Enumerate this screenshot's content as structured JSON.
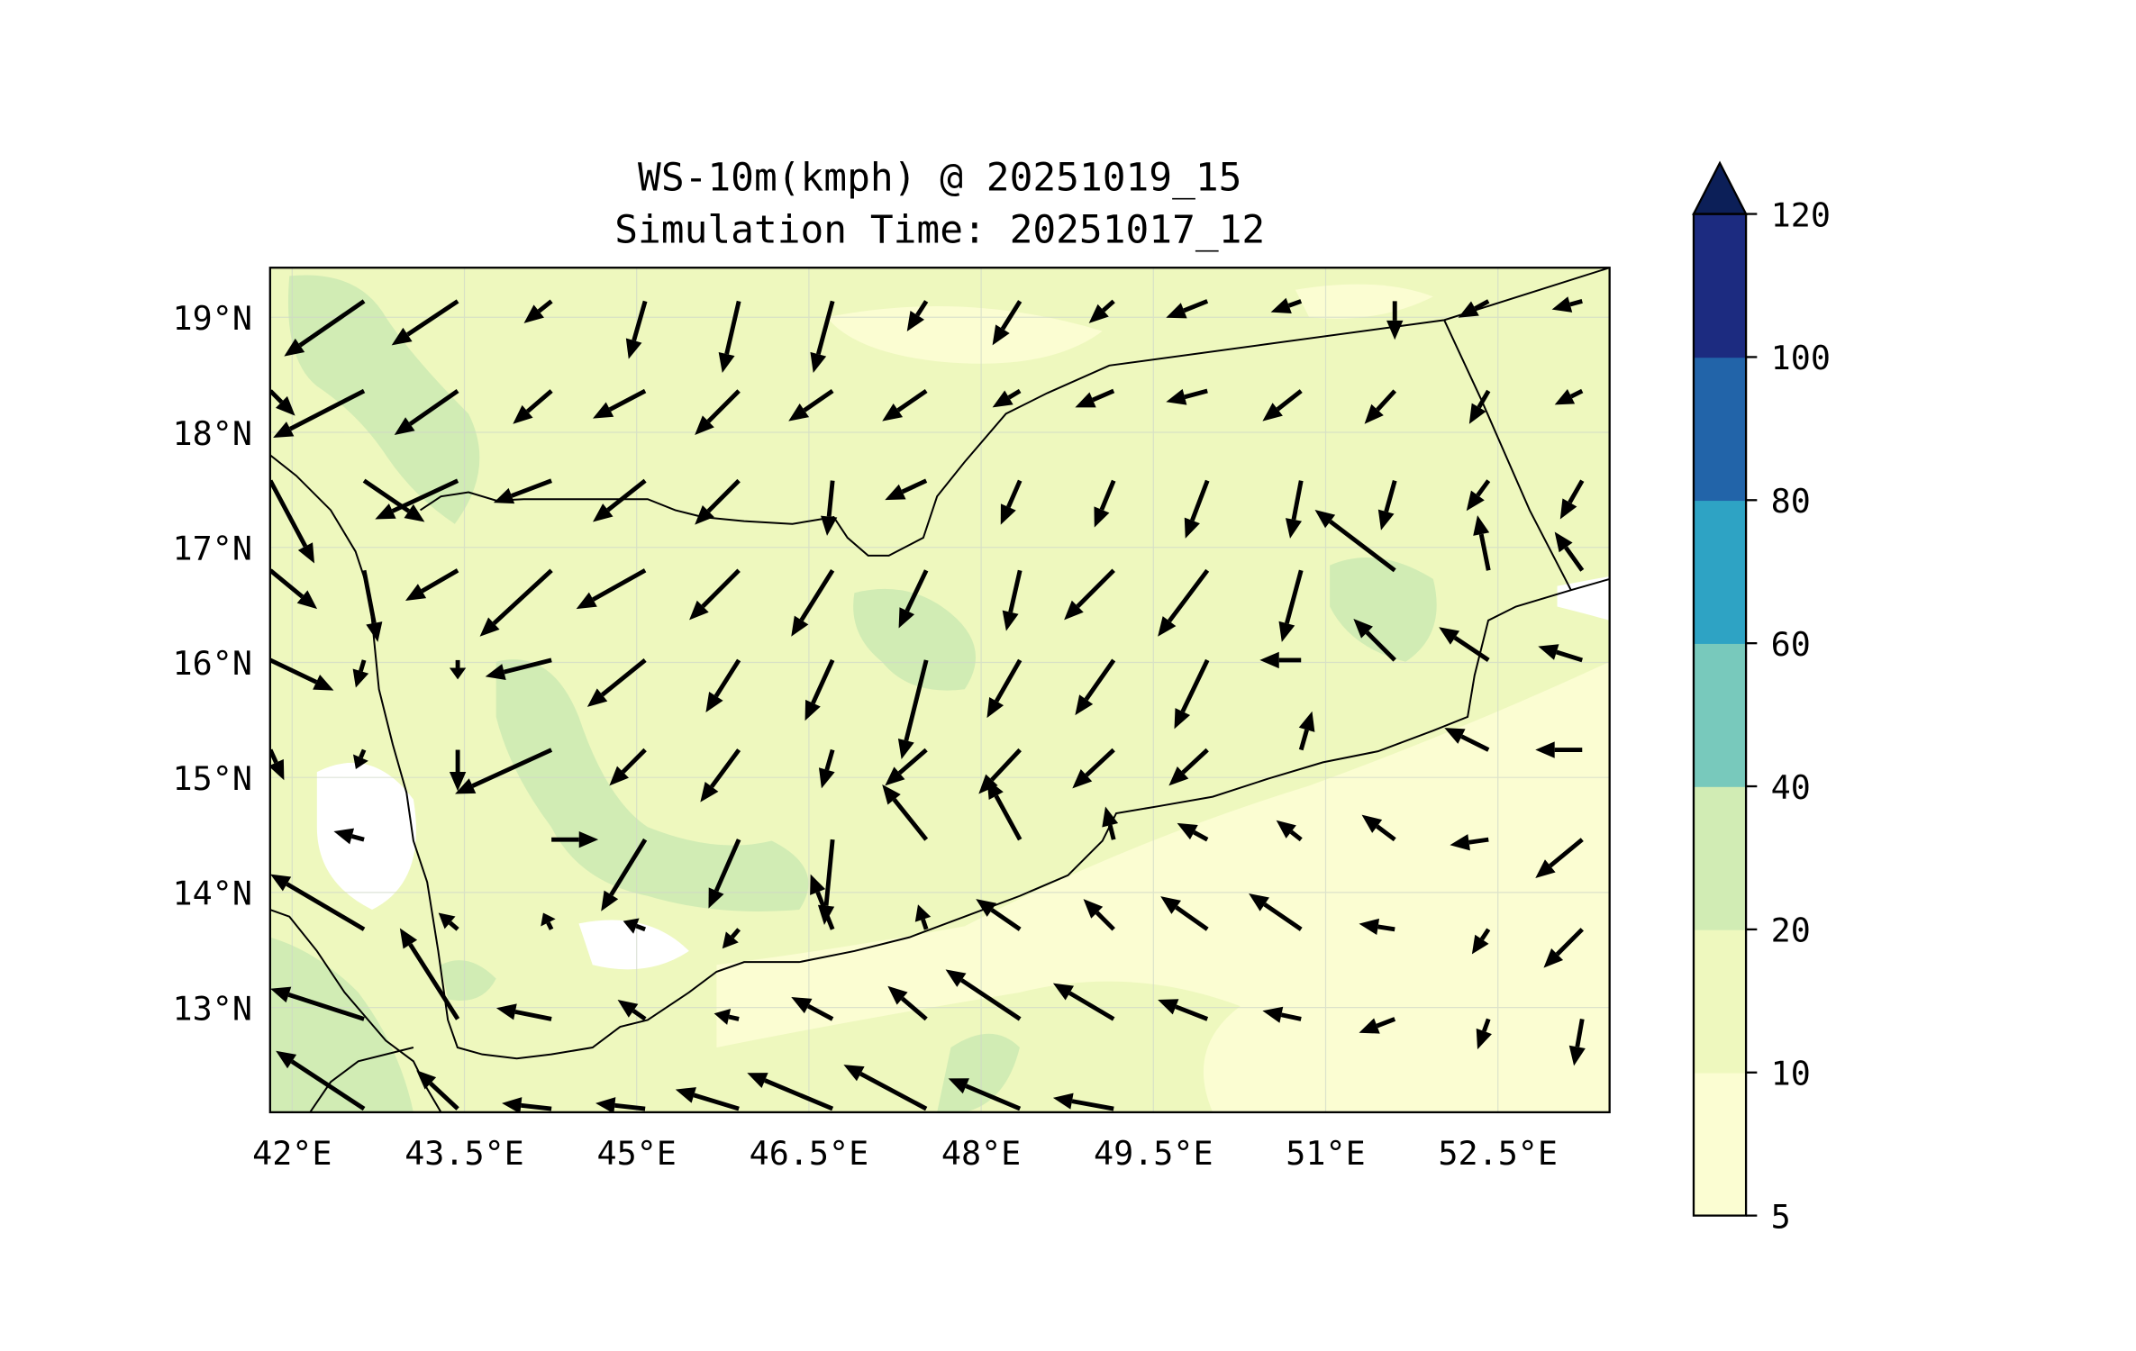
{
  "chart_data": {
    "type": "heatmap",
    "title": "WS-10m(kmph) @ 20251019_15",
    "subtitle": "Simulation Time: 20251017_12",
    "xlabel": "",
    "ylabel": "",
    "x_ticks": [
      42,
      43.5,
      45,
      46.5,
      48,
      49.5,
      51,
      52.5
    ],
    "x_tick_labels": [
      "42°E",
      "43.5°E",
      "45°E",
      "46.5°E",
      "48°E",
      "49.5°E",
      "51°E",
      "52.5°E"
    ],
    "y_ticks": [
      19,
      18,
      17,
      16,
      15,
      14,
      13
    ],
    "y_tick_labels": [
      "19°N",
      "18°N",
      "17°N",
      "16°N",
      "15°N",
      "14°N",
      "13°N"
    ],
    "xlim": [
      41.81,
      53.47
    ],
    "ylim": [
      12.1,
      19.43
    ],
    "grid": true,
    "colorbar": {
      "levels": [
        5,
        10,
        20,
        40,
        60,
        80,
        100,
        120
      ],
      "labels": [
        "5",
        "10",
        "20",
        "40",
        "60",
        "80",
        "100",
        "120"
      ],
      "colors": [
        "#fbfdd2",
        "#eef8be",
        "#d1ecb4",
        "#78c9bc",
        "#2ea3c4",
        "#2264a9",
        "#1c2b80"
      ],
      "extend_color": "#0c1f58",
      "extend": "max",
      "placement": "right"
    },
    "wind_vectors": {
      "lon0": 41.81,
      "dlon": 0.816,
      "lat0": 19.14,
      "dlat": -0.78,
      "units": "kmph",
      "u": [
        [
          null,
          -29,
          -24,
          -10,
          -6,
          -6,
          -7,
          -7,
          -10,
          -9,
          -15,
          -11,
          0,
          -11,
          -11
        ],
        [
          9,
          -33,
          -23,
          -14,
          -19,
          -16,
          -16,
          -16,
          -10,
          -14,
          -15,
          -14,
          -11,
          -7,
          -10
        ],
        [
          16,
          22,
          -30,
          -21,
          -19,
          -16,
          -2,
          -15,
          -7,
          -7,
          -8,
          -4,
          -5,
          -8,
          -8
        ],
        [
          17,
          5,
          -19,
          -26,
          -25,
          -18,
          -15,
          -10,
          -5,
          -18,
          -18,
          -7,
          -29,
          -4,
          -10
        ],
        [
          23,
          -3,
          0,
          -24,
          -21,
          -12,
          -10,
          -9,
          -12,
          -14,
          -12,
          -15,
          -15,
          -18,
          -16
        ],
        [
          5,
          -3,
          0,
          -35,
          -13,
          -14,
          -4,
          -15,
          -15,
          -15,
          -14,
          4,
          null,
          -16,
          -17
        ],
        [
          null,
          -11,
          0,
          17,
          -16,
          -11,
          -3,
          -16,
          -12,
          -3,
          -11,
          -9,
          -12,
          -14,
          -17
        ],
        [
          null,
          -34,
          -7,
          -3,
          -8,
          -6,
          -8,
          -3,
          -16,
          -11,
          -17,
          -19,
          -13,
          -6,
          -14
        ],
        [
          null,
          -34,
          -21,
          -20,
          -10,
          -9,
          -15,
          -14,
          -27,
          -22,
          -18,
          -14,
          -13,
          -4,
          -3
        ],
        [
          null,
          -32,
          -15,
          -18,
          -18,
          -23,
          -31,
          -30,
          -26,
          -22,
          null,
          null,
          null,
          null,
          null
        ]
      ],
      "v": [
        [
          null,
          -20,
          -16,
          -8,
          -21,
          -26,
          -26,
          -11,
          -16,
          -8,
          -6,
          -4,
          -14,
          -6,
          -3
        ],
        [
          -9,
          -17,
          -16,
          -12,
          -10,
          -16,
          -11,
          -11,
          -6,
          -6,
          -4,
          -11,
          -12,
          -12,
          -5
        ],
        [
          -30,
          -15,
          -14,
          -8,
          -15,
          -16,
          -20,
          -7,
          -16,
          -17,
          -21,
          -21,
          -18,
          -11,
          -14
        ],
        [
          -14,
          -26,
          -11,
          -24,
          -14,
          -18,
          -24,
          -21,
          -22,
          -18,
          -24,
          -26,
          22,
          20,
          14
        ],
        [
          -11,
          -10,
          -7,
          -6,
          -17,
          -19,
          -22,
          -36,
          -21,
          -20,
          -25,
          0,
          15,
          12,
          5
        ],
        [
          -11,
          -7,
          -15,
          -16,
          -13,
          -19,
          -14,
          -13,
          -16,
          -14,
          -13,
          14,
          null,
          8,
          0
        ],
        [
          null,
          3,
          0,
          0,
          -26,
          -25,
          -31,
          20,
          22,
          12,
          6,
          7,
          9,
          -2,
          -14
        ],
        [
          null,
          20,
          6,
          6,
          3,
          -7,
          20,
          9,
          11,
          11,
          12,
          13,
          2,
          -9,
          -14
        ],
        [
          null,
          11,
          33,
          4,
          7,
          2,
          8,
          12,
          18,
          13,
          7,
          3,
          -5,
          -11,
          -17
        ],
        [
          null,
          21,
          14,
          2,
          2,
          7,
          13,
          16,
          11,
          4,
          null,
          null,
          null,
          null,
          null
        ]
      ]
    }
  }
}
